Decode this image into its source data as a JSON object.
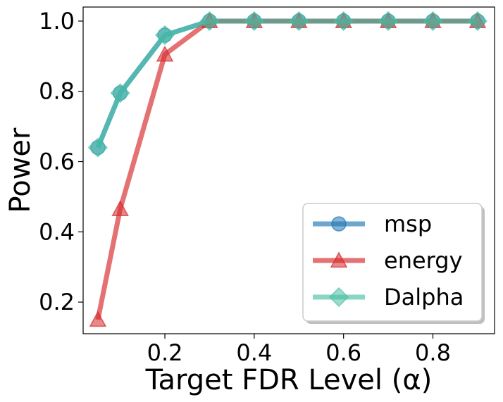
{
  "chart_data": {
    "type": "line",
    "title": "",
    "xlabel": "Target FDR Level (α)",
    "ylabel": "Power",
    "x": [
      0.05,
      0.1,
      0.2,
      0.3,
      0.4,
      0.5,
      0.6,
      0.7,
      0.8,
      0.9
    ],
    "xlim": [
      0.017,
      0.938
    ],
    "ylim": [
      0.11,
      1.04
    ],
    "xticks": [
      0.2,
      0.4,
      0.6,
      0.8
    ],
    "xtick_labels": [
      "0.2",
      "0.4",
      "0.6",
      "0.8"
    ],
    "yticks": [
      0.2,
      0.4,
      0.6,
      0.8,
      1.0
    ],
    "ytick_labels": [
      "0.2",
      "0.4",
      "0.6",
      "0.8",
      "1.0"
    ],
    "grid": false,
    "legend_position": "bottom-right",
    "series": [
      {
        "name": "msp",
        "marker": "circle",
        "color": "#1f77b4",
        "values": [
          0.64,
          0.795,
          0.96,
          1.0,
          1.0,
          1.0,
          1.0,
          1.0,
          1.0,
          1.0
        ]
      },
      {
        "name": "energy",
        "marker": "triangle",
        "color": "#d62728",
        "values": [
          0.15,
          0.465,
          0.905,
          1.0,
          1.0,
          1.0,
          1.0,
          1.0,
          1.0,
          1.0
        ]
      },
      {
        "name": "Dalpha",
        "marker": "diamond",
        "color": "#48c0a3",
        "values": [
          0.64,
          0.795,
          0.96,
          1.0,
          1.0,
          1.0,
          1.0,
          1.0,
          1.0,
          1.0
        ]
      }
    ]
  }
}
